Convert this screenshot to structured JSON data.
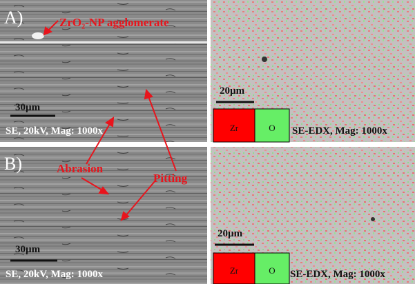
{
  "annotations": [
    "ZrO₂-NP agglomerate",
    "Abrasion",
    "Pitting"
  ],
  "panels": [
    {
      "label": "A)",
      "sem": {
        "scale_bar": "30µm",
        "caption": "SE, 20kV, Mag: 1000x"
      },
      "edx": {
        "scale_bar": "20µm",
        "legend": [
          "Zr",
          "O"
        ],
        "caption": "SE-EDX, Mag: 1000x"
      }
    },
    {
      "label": "B)",
      "sem": {
        "scale_bar": "30µm",
        "caption": "SE, 20kV, Mag: 1000x"
      },
      "edx": {
        "scale_bar": "20µm",
        "legend": [
          "Zr",
          "O"
        ],
        "caption": "SE-EDX, Mag: 1000x"
      }
    }
  ]
}
